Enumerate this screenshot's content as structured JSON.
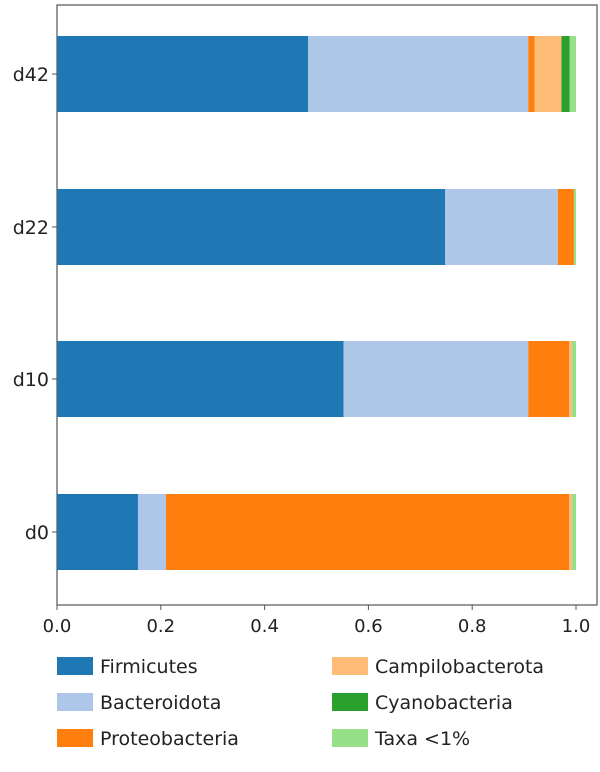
{
  "chart_data": {
    "type": "bar",
    "orientation": "horizontal",
    "stacked": true,
    "categories": [
      "d42",
      "d22",
      "d10",
      "d0"
    ],
    "series": [
      {
        "name": "Firmicutes",
        "color": "#1f77b4",
        "values": [
          0.484,
          0.748,
          0.552,
          0.156
        ]
      },
      {
        "name": "Bacteroidota",
        "color": "#aec7e8",
        "values": [
          0.424,
          0.217,
          0.356,
          0.054
        ]
      },
      {
        "name": "Proteobacteria",
        "color": "#ff7f0e",
        "values": [
          0.012,
          0.031,
          0.079,
          0.777
        ]
      },
      {
        "name": "Campilobacterota",
        "color": "#ffbb78",
        "values": [
          0.052,
          0.0,
          0.005,
          0.005
        ]
      },
      {
        "name": "Cyanobacteria",
        "color": "#2ca02c",
        "values": [
          0.016,
          0.0,
          0.0,
          0.0
        ]
      },
      {
        "name": "Taxa <1%",
        "color": "#98df8a",
        "values": [
          0.012,
          0.004,
          0.008,
          0.008
        ]
      }
    ],
    "xlim": [
      0,
      1.0
    ],
    "xticks": [
      "0.0",
      "0.2",
      "0.4",
      "0.6",
      "0.8",
      "1.0"
    ],
    "xlabel": "",
    "ylabel": "",
    "title": "",
    "legend_position": "bottom"
  }
}
